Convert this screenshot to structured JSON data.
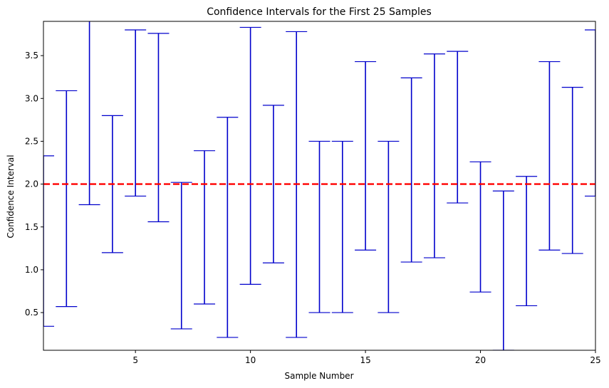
{
  "chart_data": {
    "type": "errorbar",
    "title": "Confidence Intervals for the First 25 Samples",
    "xlabel": "Sample Number",
    "ylabel": "Confidence Interval",
    "xlim": [
      1,
      25
    ],
    "ylim": [
      0.06,
      3.9
    ],
    "xticks": [
      5,
      10,
      15,
      20,
      25
    ],
    "yticks": [
      0.5,
      1.0,
      1.5,
      2.0,
      2.5,
      3.0,
      3.5
    ],
    "ytick_labels": [
      "0.5",
      "1.0",
      "1.5",
      "2.0",
      "2.5",
      "3.0",
      "3.5"
    ],
    "grid": false,
    "reference_line": {
      "y": 2.0,
      "color": "#ff0000",
      "style": "dashed"
    },
    "interval_color": "#0000cc",
    "intervals": [
      {
        "sample": 1,
        "lower": 0.34,
        "upper": 2.33
      },
      {
        "sample": 2,
        "lower": 0.57,
        "upper": 3.09
      },
      {
        "sample": 3,
        "lower": 1.76,
        "upper": 3.91
      },
      {
        "sample": 4,
        "lower": 1.2,
        "upper": 2.8
      },
      {
        "sample": 5,
        "lower": 1.86,
        "upper": 3.8
      },
      {
        "sample": 6,
        "lower": 1.56,
        "upper": 3.76
      },
      {
        "sample": 7,
        "lower": 0.31,
        "upper": 2.02
      },
      {
        "sample": 8,
        "lower": 0.6,
        "upper": 2.39
      },
      {
        "sample": 9,
        "lower": 0.21,
        "upper": 2.78
      },
      {
        "sample": 10,
        "lower": 0.83,
        "upper": 3.83
      },
      {
        "sample": 11,
        "lower": 1.08,
        "upper": 2.92
      },
      {
        "sample": 12,
        "lower": 0.21,
        "upper": 3.78
      },
      {
        "sample": 13,
        "lower": 0.5,
        "upper": 2.5
      },
      {
        "sample": 14,
        "lower": 0.5,
        "upper": 2.5
      },
      {
        "sample": 15,
        "lower": 1.23,
        "upper": 3.43
      },
      {
        "sample": 16,
        "lower": 0.5,
        "upper": 2.5
      },
      {
        "sample": 17,
        "lower": 1.09,
        "upper": 3.24
      },
      {
        "sample": 18,
        "lower": 1.14,
        "upper": 3.52
      },
      {
        "sample": 19,
        "lower": 1.78,
        "upper": 3.55
      },
      {
        "sample": 20,
        "lower": 0.74,
        "upper": 2.26
      },
      {
        "sample": 21,
        "lower": 0.06,
        "upper": 1.92
      },
      {
        "sample": 22,
        "lower": 0.58,
        "upper": 2.09
      },
      {
        "sample": 23,
        "lower": 1.23,
        "upper": 3.43
      },
      {
        "sample": 24,
        "lower": 1.19,
        "upper": 3.13
      },
      {
        "sample": 25,
        "lower": 1.86,
        "upper": 3.8
      }
    ]
  }
}
